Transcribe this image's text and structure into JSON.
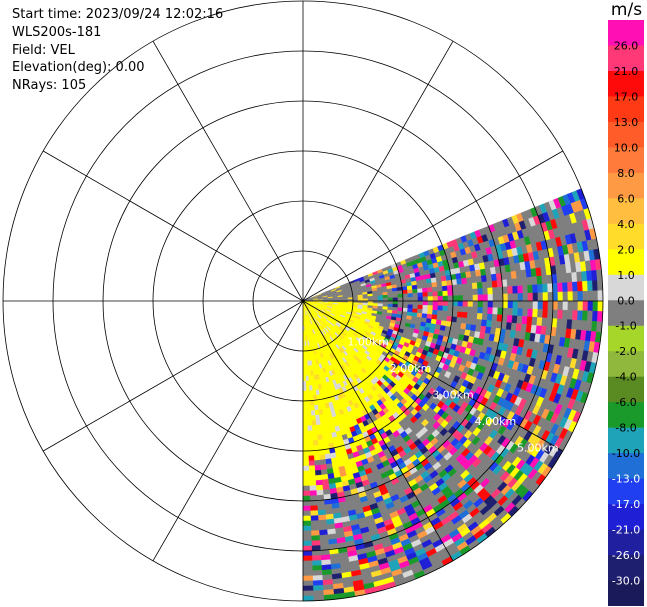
{
  "header": {
    "start_time": "Start time: 2023/09/24 12:02:16",
    "instrument": "WLS200s-181",
    "field": "Field: VEL",
    "elevation": "Elevation(deg): 0.00",
    "nrays": "NRays: 105"
  },
  "colorbar": {
    "unit": "m/s",
    "ticks": [
      "26.0",
      "21.0",
      "17.0",
      "13.0",
      "10.0",
      "8.0",
      "6.0",
      "4.0",
      "2.0",
      "1.0",
      "0.0",
      "-1.0",
      "-2.0",
      "-4.0",
      "-6.0",
      "-8.0",
      "-10.0",
      "-13.0",
      "-17.0",
      "-21.0",
      "-26.0",
      "-30.0"
    ],
    "colors": [
      "#ff0fb4",
      "#ff3878",
      "#ff0a0a",
      "#ff3a14",
      "#ff5c2a",
      "#ff7b3b",
      "#ff9a44",
      "#ffbe40",
      "#ffdc2a",
      "#ffff00",
      "#d8d8d8",
      "#7f7f7f",
      "#a6d62a",
      "#8fb83c",
      "#5a8a22",
      "#1a9a2a",
      "#1fa3b8",
      "#1f6fd6",
      "#1f3ff0",
      "#1f1fd6",
      "#1f1fa0",
      "#1f1f70",
      "#1a1a5a"
    ]
  },
  "range_labels": [
    "1.00km",
    "2.00km",
    "3.00km",
    "4.00km",
    "5.00km"
  ],
  "chart_data": {
    "type": "heatmap",
    "field": "VEL",
    "unit": "m/s",
    "elevation_deg": 0.0,
    "nrays": 105,
    "range_rings_km": [
      1.0,
      2.0,
      3.0,
      4.0,
      5.0
    ],
    "azimuth_spokes_deg": [
      0,
      30,
      60,
      90,
      120,
      150,
      180,
      210,
      240,
      270,
      300,
      330
    ],
    "scan_sector_deg": [
      68,
      180
    ],
    "max_range_km": 6.0,
    "dominant_near_range_velocity": "4.0",
    "colorbar_range": [
      -30.0,
      26.0
    ]
  }
}
